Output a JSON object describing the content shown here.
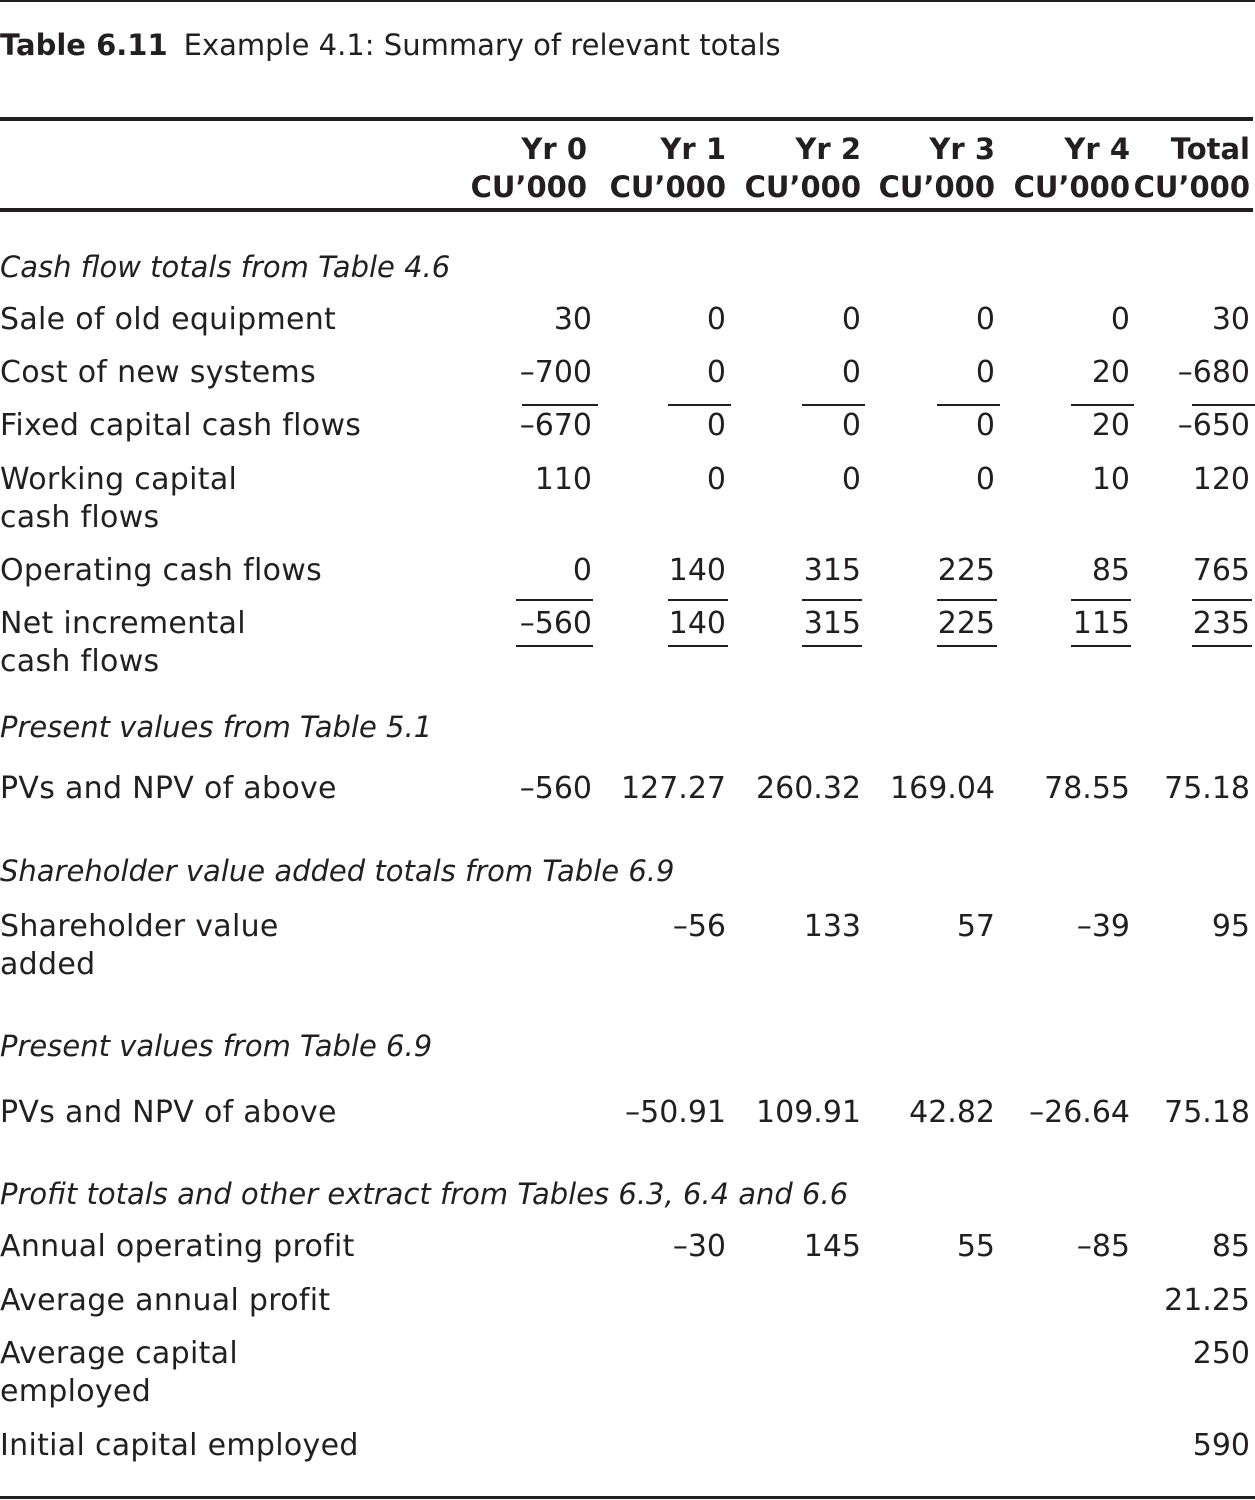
{
  "caption": {
    "label": "Table 6.11",
    "text": "Example 4.1: Summary of relevant totals"
  },
  "columns": [
    {
      "year": "Yr 0",
      "unit": "CU’000"
    },
    {
      "year": "Yr 1",
      "unit": "CU’000"
    },
    {
      "year": "Yr 2",
      "unit": "CU’000"
    },
    {
      "year": "Yr 3",
      "unit": "CU’000"
    },
    {
      "year": "Yr 4",
      "unit": "CU’000"
    },
    {
      "year": "Total",
      "unit": "CU’000"
    }
  ],
  "sections": {
    "cash_flow": "Cash flow totals from Table 4.6",
    "pv_51": "Present values from Table 5.1",
    "sva": "Shareholder value added totals from Table 6.9",
    "pv_69": "Present values from Table 6.9",
    "profit": "Profit totals and other extract from Tables 6.3, 6.4 and 6.6"
  },
  "rows": [
    {
      "label": "Sale of old equipment",
      "values": [
        "30",
        "0",
        "0",
        "0",
        "0",
        "30"
      ]
    },
    {
      "label": "Cost of new systems",
      "values": [
        "–700",
        "0",
        "0",
        "0",
        "20",
        "–680"
      ]
    },
    {
      "label": "Fixed capital cash flows",
      "values": [
        "–670",
        "0",
        "0",
        "0",
        "20",
        "–650"
      ]
    },
    {
      "label": "Working capital cash flows",
      "values": [
        "110",
        "0",
        "0",
        "0",
        "10",
        "120"
      ]
    },
    {
      "label": "Operating cash flows",
      "values": [
        "0",
        "140",
        "315",
        "225",
        "85",
        "765"
      ]
    },
    {
      "label": "Net incremental cash flows",
      "values": [
        "–560",
        "140",
        "315",
        "225",
        "115",
        "235"
      ]
    },
    {
      "label": "PVs and NPV of above",
      "values": [
        "–560",
        "127.27",
        "260.32",
        "169.04",
        "78.55",
        "75.18"
      ]
    },
    {
      "label": "Shareholder value added",
      "values": [
        "",
        "–56",
        "133",
        "57",
        "–39",
        "95"
      ]
    },
    {
      "label": "PVs and NPV of above",
      "values": [
        "",
        "–50.91",
        "109.91",
        "42.82",
        "–26.64",
        "75.18"
      ]
    },
    {
      "label": "Annual operating profit",
      "values": [
        "",
        "–30",
        "145",
        "55",
        "–85",
        "85"
      ]
    },
    {
      "label": "Average annual profit",
      "values": [
        "",
        "",
        "",
        "",
        "",
        "21.25"
      ]
    },
    {
      "label": "Average capital employed",
      "values": [
        "",
        "",
        "",
        "",
        "",
        "250"
      ]
    },
    {
      "label": "Initial capital employed",
      "values": [
        "",
        "",
        "",
        "",
        "",
        "590"
      ]
    }
  ]
}
